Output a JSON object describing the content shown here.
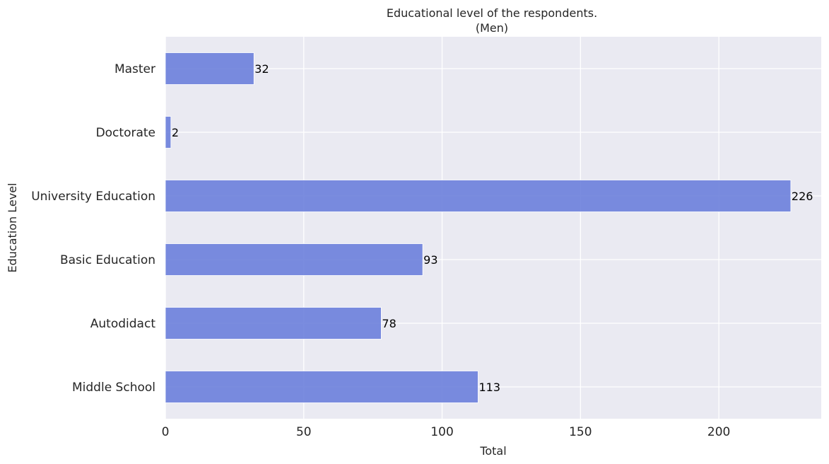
{
  "chart_data": {
    "type": "bar",
    "orientation": "horizontal",
    "title": [
      "Educational level of the respondents.",
      "(Men)"
    ],
    "xlabel": "Total",
    "ylabel": "Education Level",
    "categories": [
      "Middle School",
      "Autodidact",
      "Basic Education",
      "University Education",
      "Doctorate",
      "Master"
    ],
    "values": [
      113,
      78,
      93,
      226,
      2,
      32
    ],
    "data_labels": [
      "113",
      "78",
      "93",
      "226",
      "2",
      "32"
    ],
    "xlim": [
      0,
      237
    ],
    "xticks": [
      0,
      50,
      100,
      150,
      200
    ],
    "xtick_labels": [
      "0",
      "50",
      "100",
      "150",
      "200"
    ],
    "grid": true,
    "colors": {
      "bar": "#6c7fdb",
      "plot_background": "#eaeaf2",
      "grid": "#ffffff"
    }
  }
}
